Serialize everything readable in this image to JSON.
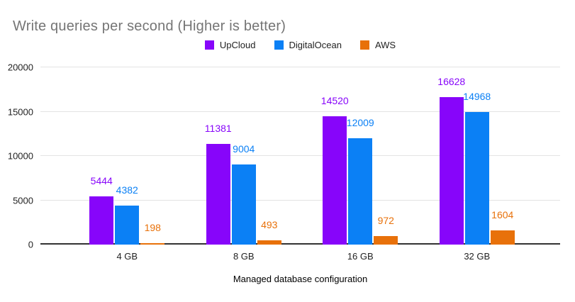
{
  "chart_data": {
    "type": "bar",
    "title": "Write queries per second (Higher is better)",
    "xlabel": "Managed database configuration",
    "ylabel": "",
    "categories": [
      "4 GB",
      "8 GB",
      "16 GB",
      "32 GB"
    ],
    "series": [
      {
        "name": "UpCloud",
        "color": "#8705fa",
        "values": [
          5444,
          11381,
          14520,
          16628
        ]
      },
      {
        "name": "DigitalOcean",
        "color": "#0b80f5",
        "values": [
          4382,
          9004,
          12009,
          14968
        ]
      },
      {
        "name": "AWS",
        "color": "#e8710a",
        "values": [
          198,
          493,
          972,
          1604
        ]
      }
    ],
    "ylim": [
      0,
      20000
    ],
    "yticks": [
      0,
      5000,
      10000,
      15000,
      20000
    ],
    "grid": true,
    "legend_position": "top",
    "value_labels": true
  },
  "colors": {
    "background": "#ffffff",
    "title_text": "#757575",
    "axis_text": "#222222",
    "gridline": "#e3e3e3",
    "baseline": "#333333"
  }
}
